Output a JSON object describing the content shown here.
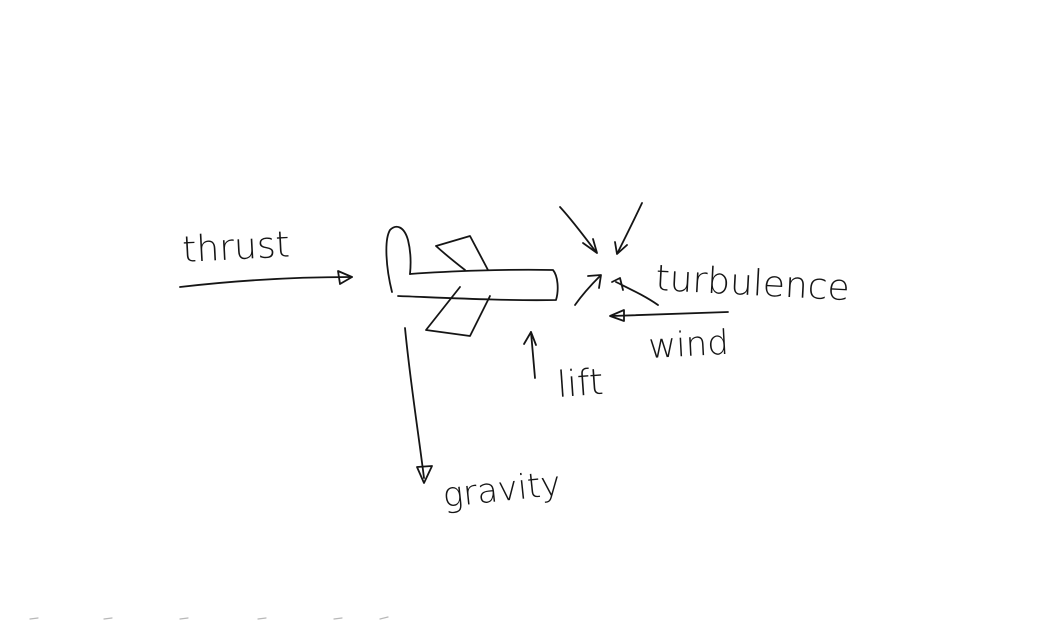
{
  "diagram": {
    "labels": {
      "thrust": "thrust",
      "turbulence": "turbulence",
      "wind": "wind",
      "lift": "lift",
      "gravity": "gravity"
    },
    "ink_color": "#151515",
    "background": "#ffffff"
  }
}
